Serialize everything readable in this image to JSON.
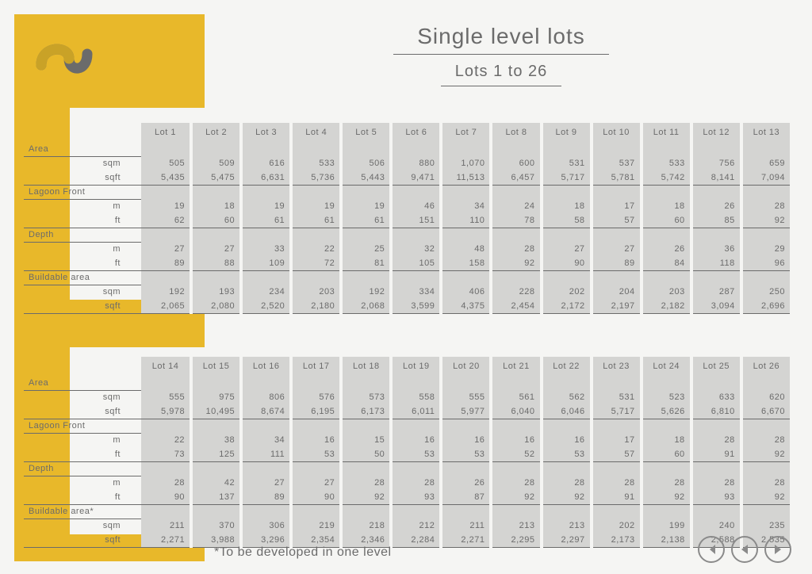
{
  "title": "Single level lots",
  "subtitle": "Lots 1 to 26",
  "footnote": "*To be developed in one level",
  "colors": {
    "accent_yellow": "#e8b82a",
    "page_bg": "#f5f5f3",
    "cell_bg": "#d4d4d2",
    "text": "#6b6b6b",
    "rule": "#6b6b6b"
  },
  "typography": {
    "title_fontsize_pt": 28,
    "subtitle_fontsize_pt": 20,
    "body_fontsize_pt": 11,
    "font_weight": 300
  },
  "sections": [
    {
      "name": "Area",
      "units": [
        "sqm",
        "sqft"
      ]
    },
    {
      "name": "Lagoon Front",
      "units": [
        "m",
        "ft"
      ]
    },
    {
      "name": "Depth",
      "units": [
        "m",
        "ft"
      ]
    },
    {
      "name": "Buildable area",
      "units": [
        "sqm",
        "sqft"
      ]
    }
  ],
  "table1": {
    "lots": [
      "Lot 1",
      "Lot 2",
      "Lot 3",
      "Lot 4",
      "Lot 5",
      "Lot 6",
      "Lot 7",
      "Lot 8",
      "Lot 9",
      "Lot 10",
      "Lot 11",
      "Lot 12",
      "Lot 13"
    ],
    "area_sqm": [
      "505",
      "509",
      "616",
      "533",
      "506",
      "880",
      "1,070",
      "600",
      "531",
      "537",
      "533",
      "756",
      "659"
    ],
    "area_sqft": [
      "5,435",
      "5,475",
      "6,631",
      "5,736",
      "5,443",
      "9,471",
      "11,513",
      "6,457",
      "5,717",
      "5,781",
      "5,742",
      "8,141",
      "7,094"
    ],
    "lagoon_m": [
      "19",
      "18",
      "19",
      "19",
      "19",
      "46",
      "34",
      "24",
      "18",
      "17",
      "18",
      "26",
      "28"
    ],
    "lagoon_ft": [
      "62",
      "60",
      "61",
      "61",
      "61",
      "151",
      "110",
      "78",
      "58",
      "57",
      "60",
      "85",
      "92"
    ],
    "depth_m": [
      "27",
      "27",
      "33",
      "22",
      "25",
      "32",
      "48",
      "28",
      "27",
      "27",
      "26",
      "36",
      "29"
    ],
    "depth_ft": [
      "89",
      "88",
      "109",
      "72",
      "81",
      "105",
      "158",
      "92",
      "90",
      "89",
      "84",
      "118",
      "96"
    ],
    "build_sqm": [
      "192",
      "193",
      "234",
      "203",
      "192",
      "334",
      "406",
      "228",
      "202",
      "204",
      "203",
      "287",
      "250"
    ],
    "build_sqft": [
      "2,065",
      "2,080",
      "2,520",
      "2,180",
      "2,068",
      "3,599",
      "4,375",
      "2,454",
      "2,172",
      "2,197",
      "2,182",
      "3,094",
      "2,696"
    ],
    "buildable_label": "Buildable area"
  },
  "table2": {
    "lots": [
      "Lot 14",
      "Lot 15",
      "Lot 16",
      "Lot 17",
      "Lot 18",
      "Lot 19",
      "Lot 20",
      "Lot 21",
      "Lot 22",
      "Lot 23",
      "Lot 24",
      "Lot 25",
      "Lot 26"
    ],
    "area_sqm": [
      "555",
      "975",
      "806",
      "576",
      "573",
      "558",
      "555",
      "561",
      "562",
      "531",
      "523",
      "633",
      "620"
    ],
    "area_sqft": [
      "5,978",
      "10,495",
      "8,674",
      "6,195",
      "6,173",
      "6,011",
      "5,977",
      "6,040",
      "6,046",
      "5,717",
      "5,626",
      "6,810",
      "6,670"
    ],
    "lagoon_m": [
      "22",
      "38",
      "34",
      "16",
      "15",
      "16",
      "16",
      "16",
      "16",
      "17",
      "18",
      "28",
      "28"
    ],
    "lagoon_ft": [
      "73",
      "125",
      "111",
      "53",
      "50",
      "53",
      "53",
      "52",
      "53",
      "57",
      "60",
      "91",
      "92"
    ],
    "depth_m": [
      "28",
      "42",
      "27",
      "27",
      "28",
      "28",
      "26",
      "28",
      "28",
      "28",
      "28",
      "28",
      "28"
    ],
    "depth_ft": [
      "90",
      "137",
      "89",
      "90",
      "92",
      "93",
      "87",
      "92",
      "92",
      "91",
      "92",
      "93",
      "92"
    ],
    "build_sqm": [
      "211",
      "370",
      "306",
      "219",
      "218",
      "212",
      "211",
      "213",
      "213",
      "202",
      "199",
      "240",
      "235"
    ],
    "build_sqft": [
      "2,271",
      "3,988",
      "3,296",
      "2,354",
      "2,346",
      "2,284",
      "2,271",
      "2,295",
      "2,297",
      "2,173",
      "2,138",
      "2,588",
      "2,535"
    ],
    "buildable_label": "Buildable area*"
  }
}
